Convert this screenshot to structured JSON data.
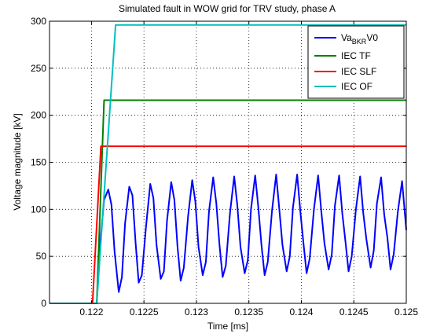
{
  "chart_data": {
    "type": "line",
    "title": "Simulated fault in WOW grid for TRV study, phase A",
    "xlabel": "Time [ms]",
    "ylabel": "Voltage magnitude [kV]",
    "xlim": [
      0.1216,
      0.125
    ],
    "ylim": [
      0,
      300
    ],
    "xticks": [
      0.122,
      0.1225,
      0.123,
      0.1235,
      0.124,
      0.1245,
      0.125
    ],
    "xtick_labels": [
      "0.122",
      "0.1225",
      "0.123",
      "0.1235",
      "0.124",
      "0.1245",
      "0.125"
    ],
    "yticks": [
      0,
      50,
      100,
      150,
      200,
      250,
      300
    ],
    "ytick_labels": [
      "0",
      "50",
      "100",
      "150",
      "200",
      "250",
      "300"
    ],
    "grid": "dotted",
    "legend_position": "top-right",
    "series": [
      {
        "name": "Va_BKR V0",
        "legend_main": "Va",
        "legend_sub": "BKR",
        "legend_tail": "V0",
        "color": "#0000ff",
        "x": [
          0.1216,
          0.12205,
          0.12208,
          0.12212,
          0.12216,
          0.12219,
          0.12222,
          0.12226,
          0.12229,
          0.12232,
          0.12236,
          0.12239,
          0.12242,
          0.12245,
          0.12248,
          0.12252,
          0.12256,
          0.12259,
          0.12262,
          0.12266,
          0.12269,
          0.12272,
          0.12276,
          0.12279,
          0.12282,
          0.12285,
          0.12288,
          0.12292,
          0.12296,
          0.12299,
          0.12302,
          0.12306,
          0.12309,
          0.12312,
          0.12316,
          0.12319,
          0.12322,
          0.12325,
          0.12328,
          0.12332,
          0.12336,
          0.12339,
          0.12342,
          0.12346,
          0.12349,
          0.12352,
          0.12356,
          0.12359,
          0.12362,
          0.12365,
          0.12368,
          0.12372,
          0.12376,
          0.12379,
          0.12382,
          0.12386,
          0.12389,
          0.12392,
          0.12396,
          0.12399,
          0.12402,
          0.12405,
          0.12408,
          0.12412,
          0.12416,
          0.12419,
          0.12422,
          0.12426,
          0.12429,
          0.12432,
          0.12436,
          0.12439,
          0.12442,
          0.12445,
          0.12448,
          0.12452,
          0.12456,
          0.12459,
          0.12462,
          0.12466,
          0.12469,
          0.12472,
          0.12476,
          0.12479,
          0.12482,
          0.12485,
          0.12488,
          0.12492,
          0.12496,
          0.125
        ],
        "y": [
          0,
          0,
          60,
          110,
          121,
          105,
          55,
          12,
          28,
          85,
          124,
          115,
          65,
          22,
          30,
          82,
          127,
          112,
          62,
          26,
          34,
          88,
          129,
          110,
          60,
          24,
          38,
          92,
          131,
          108,
          60,
          30,
          44,
          98,
          134,
          106,
          62,
          28,
          40,
          96,
          135,
          104,
          60,
          32,
          46,
          100,
          136,
          102,
          62,
          30,
          44,
          98,
          137,
          100,
          62,
          34,
          50,
          102,
          137,
          98,
          64,
          32,
          48,
          100,
          136,
          98,
          64,
          36,
          52,
          104,
          136,
          96,
          66,
          34,
          50,
          100,
          135,
          96,
          68,
          38,
          56,
          106,
          134,
          94,
          70,
          36,
          52,
          98,
          130,
          78
        ]
      },
      {
        "name": "IEC TF",
        "color": "#008000",
        "x": [
          0.1216,
          0.12205,
          0.12212,
          0.125
        ],
        "y": [
          0,
          0,
          216,
          216
        ]
      },
      {
        "name": "IEC SLF",
        "color": "#ff0000",
        "x": [
          0.1216,
          0.12201,
          0.12209,
          0.125
        ],
        "y": [
          0,
          0,
          167,
          167
        ]
      },
      {
        "name": "IEC OF",
        "color": "#00bfbf",
        "x": [
          0.1216,
          0.12205,
          0.12223,
          0.125
        ],
        "y": [
          0,
          0,
          296,
          296
        ]
      }
    ]
  }
}
